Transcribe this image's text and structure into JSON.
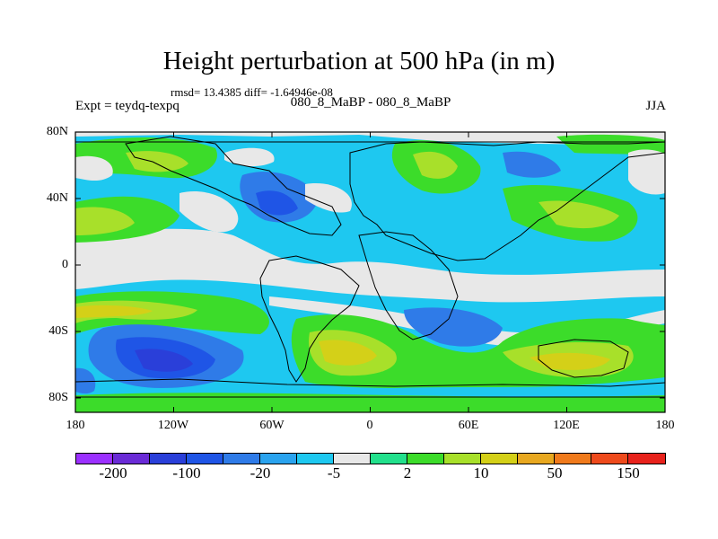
{
  "chart": {
    "title": "Height perturbation at 500 hPa (in m)",
    "stats": "rmsd= 13.4385 diff= -1.64946e-08",
    "left_label": "Expt = teydq-texpq",
    "center_label": "080_8_MaBP - 080_8_MaBP",
    "right_label": "JJA"
  },
  "map": {
    "lat_ticks": [
      "80N",
      "40N",
      "0",
      "40S",
      "80S"
    ],
    "lon_ticks": [
      "180",
      "120W",
      "60W",
      "0",
      "60E",
      "120E",
      "180"
    ],
    "lat_range": [
      -90,
      90
    ],
    "lon_range": [
      -180,
      180
    ],
    "projection": "cylindrical equidistant",
    "land_outline": true
  },
  "colorbar": {
    "colors": [
      "#9b30ff",
      "#6a2bd6",
      "#2a3fd9",
      "#1f55e6",
      "#2f7be8",
      "#2aa3ee",
      "#1ec8f0",
      "#e8e8e8",
      "#22e08c",
      "#3cdc2a",
      "#a8e02a",
      "#d4d018",
      "#e8a820",
      "#f07a1c",
      "#ee4a1c",
      "#e8221c"
    ],
    "labels": [
      "-200",
      "-100",
      "-20",
      "-5",
      "2",
      "10",
      "50",
      "150"
    ]
  }
}
